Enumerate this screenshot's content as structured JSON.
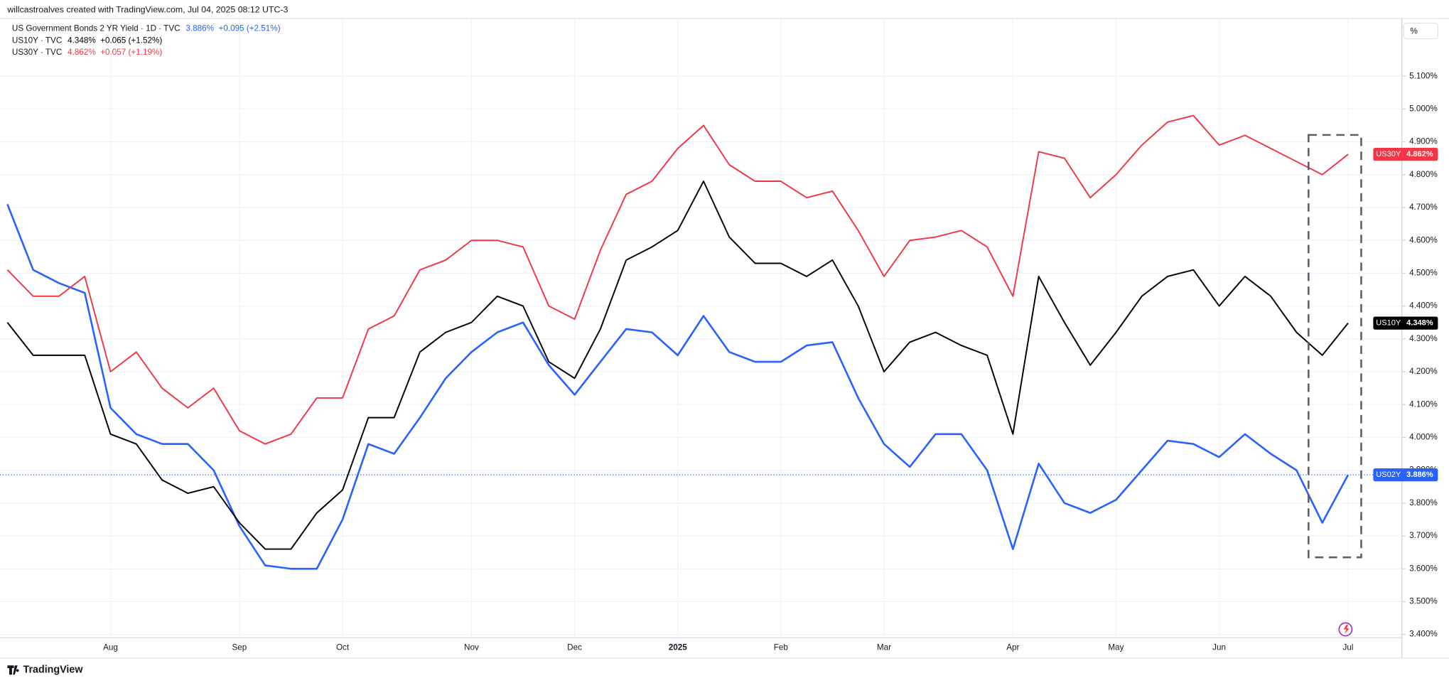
{
  "header": "willcastroalves created with TradingView.com, Jul 04, 2025 08:12 UTC-3",
  "footer": "TradingView",
  "chart_data": {
    "type": "line",
    "categories": [
      null,
      null,
      null,
      null,
      "Aug",
      null,
      null,
      null,
      null,
      "Sep",
      null,
      null,
      null,
      "Oct",
      null,
      null,
      null,
      null,
      "Nov",
      null,
      null,
      null,
      "Dec",
      null,
      null,
      null,
      "2025",
      null,
      null,
      null,
      "Feb",
      null,
      null,
      null,
      "Mar",
      null,
      null,
      null,
      null,
      "Apr",
      null,
      null,
      null,
      "May",
      null,
      null,
      null,
      "Jun",
      null,
      null,
      null,
      null,
      "Jul"
    ],
    "series": [
      {
        "name": "US02Y",
        "title": "US Government Bonds 2 YR Yield · 1D · TVC",
        "color": "#2962ff",
        "last_label": "3.886%",
        "change": "+0.095 (+2.51%)",
        "values": [
          4.71,
          4.51,
          4.47,
          4.44,
          4.09,
          4.01,
          3.98,
          3.98,
          3.9,
          3.73,
          3.61,
          3.6,
          3.6,
          3.75,
          3.98,
          3.95,
          4.06,
          4.18,
          4.26,
          4.32,
          4.35,
          4.22,
          4.13,
          4.23,
          4.33,
          4.32,
          4.25,
          4.37,
          4.26,
          4.23,
          4.23,
          4.28,
          4.29,
          4.12,
          3.98,
          3.91,
          4.01,
          4.01,
          3.9,
          3.66,
          3.92,
          3.8,
          3.77,
          3.81,
          3.9,
          3.99,
          3.98,
          3.94,
          4.01,
          3.95,
          3.9,
          3.74,
          3.886
        ]
      },
      {
        "name": "US10Y",
        "title": "US10Y · TVC",
        "color": "#000000",
        "last_label": "4.348%",
        "change": "+0.065 (+1.52%)",
        "values": [
          4.35,
          4.25,
          4.25,
          4.25,
          4.01,
          3.98,
          3.87,
          3.83,
          3.85,
          3.74,
          3.66,
          3.66,
          3.77,
          3.84,
          4.06,
          4.06,
          4.26,
          4.32,
          4.35,
          4.43,
          4.4,
          4.23,
          4.18,
          4.33,
          4.54,
          4.58,
          4.63,
          4.78,
          4.61,
          4.53,
          4.53,
          4.49,
          4.54,
          4.4,
          4.2,
          4.29,
          4.32,
          4.28,
          4.25,
          4.01,
          4.49,
          4.35,
          4.22,
          4.32,
          4.43,
          4.49,
          4.51,
          4.4,
          4.49,
          4.43,
          4.32,
          4.25,
          4.348
        ]
      },
      {
        "name": "US30Y",
        "title": "US30Y · TVC",
        "color": "#f23645",
        "last_label": "4.862%",
        "change": "+0.057 (+1.19%)",
        "values": [
          4.51,
          4.43,
          4.43,
          4.49,
          4.2,
          4.26,
          4.15,
          4.09,
          4.15,
          4.02,
          3.98,
          4.01,
          4.12,
          4.12,
          4.33,
          4.37,
          4.51,
          4.54,
          4.6,
          4.6,
          4.58,
          4.4,
          4.36,
          4.57,
          4.74,
          4.78,
          4.88,
          4.95,
          4.83,
          4.78,
          4.78,
          4.73,
          4.75,
          4.63,
          4.49,
          4.6,
          4.61,
          4.63,
          4.58,
          4.43,
          4.87,
          4.85,
          4.73,
          4.8,
          4.89,
          4.96,
          4.98,
          4.89,
          4.92,
          4.88,
          4.84,
          4.8,
          4.862
        ]
      }
    ],
    "ylim": [
      3.39,
      5.27
    ],
    "y_unit": "%",
    "yticks": [
      {
        "value": 3.4,
        "label": "3.400%"
      },
      {
        "value": 3.5,
        "label": "3.500%"
      },
      {
        "value": 3.6,
        "label": "3.600%"
      },
      {
        "value": 3.7,
        "label": "3.700%"
      },
      {
        "value": 3.8,
        "label": "3.800%"
      },
      {
        "value": 3.9,
        "label": "3.900%"
      },
      {
        "value": 4.0,
        "label": "4.000%"
      },
      {
        "value": 4.1,
        "label": "4.100%"
      },
      {
        "value": 4.2,
        "label": "4.200%"
      },
      {
        "value": 4.3,
        "label": "4.300%"
      },
      {
        "value": 4.4,
        "label": "4.400%"
      },
      {
        "value": 4.5,
        "label": "4.500%"
      },
      {
        "value": 4.6,
        "label": "4.600%"
      },
      {
        "value": 4.7,
        "label": "4.700%"
      },
      {
        "value": 4.8,
        "label": "4.800%"
      },
      {
        "value": 4.9,
        "label": "4.900%"
      },
      {
        "value": 5.0,
        "label": "5.000%"
      },
      {
        "value": 5.1,
        "label": "5.100%"
      }
    ],
    "grid": true
  }
}
